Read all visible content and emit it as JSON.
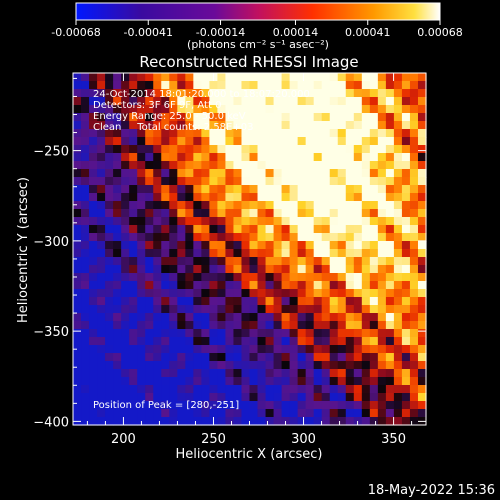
{
  "colorbar": {
    "tick_labels": [
      "-0.00068",
      "-0.00041",
      "-0.00014",
      "0.00014",
      "0.00041",
      "0.00068"
    ],
    "units_label": "(photons cm⁻² s⁻¹ asec⁻²)",
    "range": [
      -0.00068,
      0.00068
    ]
  },
  "chart_data": {
    "type": "heatmap",
    "title": "Reconstructed RHESSI Image",
    "xlabel": "Heliocentric X (arcsec)",
    "ylabel": "Heliocentric Y (arcsec)",
    "xlim": [
      172,
      368
    ],
    "ylim": [
      -402,
      -207
    ],
    "x_ticks": [
      200,
      250,
      300,
      350
    ],
    "y_ticks": [
      -250,
      -300,
      -350,
      -400
    ],
    "peak": [
      280,
      -251
    ],
    "colormap": "blue-purple-red-orange-yellow-white (RHESSI)",
    "annotations": [
      "24-Oct-2014 18:01:20.000 to 18:07:20.000",
      "Detectors: 3F 6F 9F, Att 0",
      "Energy Range: 25.0 - 50.0 keV",
      "Clean     Total counts: 2.58E+03"
    ],
    "peak_label": "Position of Peak = [280,-251]"
  },
  "footer": {
    "timestamp": "18-May-2022 15:36"
  }
}
